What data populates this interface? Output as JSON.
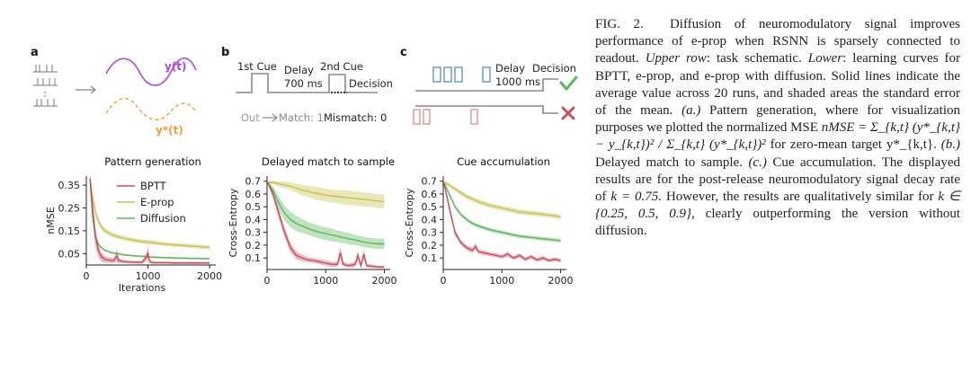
{
  "panel_letters": {
    "a": "a",
    "b": "b",
    "c": "c"
  },
  "schematic_a": {
    "y": "y(t)",
    "ystar": "y*(t)"
  },
  "schematic_b": {
    "cue1": "1st Cue",
    "delay": "Delay",
    "delay_ms": "700 ms",
    "cue2": "2nd Cue",
    "decision": "Decision",
    "out": "Out",
    "match": "Match: 1",
    "mismatch": "Mismatch: 0"
  },
  "schematic_c": {
    "delay": "Delay",
    "delay_ms": "1000 ms",
    "decision": "Decision"
  },
  "colors": {
    "bptt": "#c94f5c",
    "eprop": "#c8c04a",
    "diffusion": "#5cb85c",
    "purple": "#b044d8",
    "orange": "#f0a030",
    "blue": "#6a9ec8",
    "pink": "#e8989c",
    "grey": "#888888"
  },
  "chart_data": [
    {
      "type": "line",
      "title": "Pattern generation",
      "xlabel": "Iterations",
      "ylabel": "nMSE",
      "xlim": [
        0,
        2100
      ],
      "ylim": [
        0,
        0.39
      ],
      "xticks": [
        0,
        1000,
        2000
      ],
      "yticks": [
        0.05,
        0.15,
        0.25,
        0.35
      ],
      "legend": [
        "BPTT",
        "E-prop",
        "Diffusion"
      ],
      "series": [
        {
          "name": "BPTT",
          "x": [
            60,
            100,
            150,
            200,
            250,
            300,
            350,
            400,
            450,
            480,
            500,
            520,
            550,
            600,
            700,
            800,
            900,
            980,
            1000,
            1020,
            1050,
            1100,
            1200,
            1300,
            1400,
            1500,
            1600,
            1700,
            1800,
            1900,
            2000
          ],
          "values": [
            0.38,
            0.25,
            0.12,
            0.06,
            0.035,
            0.025,
            0.022,
            0.02,
            0.02,
            0.035,
            0.04,
            0.02,
            0.018,
            0.015,
            0.013,
            0.012,
            0.012,
            0.035,
            0.055,
            0.02,
            0.012,
            0.01,
            0.01,
            0.01,
            0.009,
            0.009,
            0.009,
            0.009,
            0.009,
            0.009,
            0.009
          ],
          "err": [
            0.02,
            0.05,
            0.04,
            0.03,
            0.02,
            0.015,
            0.012,
            0.012,
            0.012,
            0.02,
            0.03,
            0.012,
            0.01,
            0.008,
            0.006,
            0.006,
            0.006,
            0.02,
            0.03,
            0.01,
            0.006,
            0.005,
            0.005,
            0.005,
            0.005,
            0.005,
            0.005,
            0.005,
            0.005,
            0.005,
            0.005
          ]
        },
        {
          "name": "E-prop",
          "x": [
            60,
            100,
            150,
            200,
            250,
            300,
            400,
            500,
            600,
            700,
            800,
            900,
            1000,
            1100,
            1200,
            1300,
            1400,
            1500,
            1600,
            1700,
            1800,
            1900,
            2000
          ],
          "values": [
            0.38,
            0.3,
            0.23,
            0.19,
            0.165,
            0.15,
            0.135,
            0.125,
            0.118,
            0.112,
            0.107,
            0.103,
            0.1,
            0.097,
            0.094,
            0.091,
            0.089,
            0.087,
            0.085,
            0.083,
            0.081,
            0.079,
            0.077
          ],
          "err": [
            0.015,
            0.015,
            0.014,
            0.013,
            0.012,
            0.012,
            0.011,
            0.011,
            0.01,
            0.01,
            0.01,
            0.01,
            0.01,
            0.01,
            0.009,
            0.009,
            0.009,
            0.009,
            0.009,
            0.009,
            0.009,
            0.009,
            0.009
          ]
        },
        {
          "name": "Diffusion",
          "x": [
            60,
            100,
            150,
            200,
            250,
            300,
            400,
            500,
            600,
            700,
            800,
            900,
            1000,
            1100,
            1200,
            1300,
            1400,
            1500,
            1600,
            1700,
            1800,
            1900,
            2000
          ],
          "values": [
            0.38,
            0.22,
            0.12,
            0.09,
            0.075,
            0.065,
            0.055,
            0.05,
            0.045,
            0.042,
            0.04,
            0.038,
            0.036,
            0.034,
            0.033,
            0.032,
            0.031,
            0.03,
            0.03,
            0.029,
            0.029,
            0.028,
            0.028
          ],
          "err": [
            0.01,
            0.01,
            0.008,
            0.006,
            0.005,
            0.005,
            0.004,
            0.004,
            0.004,
            0.004,
            0.004,
            0.004,
            0.004,
            0.004,
            0.004,
            0.004,
            0.004,
            0.004,
            0.004,
            0.004,
            0.004,
            0.004,
            0.004
          ]
        }
      ]
    },
    {
      "type": "line",
      "title": "Delayed match to sample",
      "xlabel": "",
      "ylabel": "Cross-Entropy",
      "xlim": [
        0,
        2100
      ],
      "ylim": [
        0.01,
        0.74
      ],
      "xticks": [
        0,
        1000,
        2000
      ],
      "yticks": [
        0.1,
        0.2,
        0.3,
        0.4,
        0.5,
        0.6,
        0.7
      ],
      "series": [
        {
          "name": "BPTT",
          "x": [
            10,
            100,
            200,
            300,
            400,
            500,
            600,
            700,
            800,
            900,
            1000,
            1100,
            1200,
            1250,
            1300,
            1350,
            1400,
            1500,
            1550,
            1600,
            1650,
            1700,
            1800,
            1900,
            2000
          ],
          "values": [
            0.69,
            0.6,
            0.45,
            0.3,
            0.18,
            0.12,
            0.1,
            0.085,
            0.08,
            0.07,
            0.06,
            0.05,
            0.05,
            0.14,
            0.05,
            0.045,
            0.04,
            0.05,
            0.12,
            0.04,
            0.13,
            0.04,
            0.035,
            0.03,
            0.03
          ],
          "err": [
            0.01,
            0.03,
            0.04,
            0.04,
            0.035,
            0.03,
            0.025,
            0.02,
            0.02,
            0.02,
            0.02,
            0.02,
            0.02,
            0.05,
            0.02,
            0.015,
            0.015,
            0.02,
            0.04,
            0.015,
            0.04,
            0.015,
            0.012,
            0.01,
            0.01
          ]
        },
        {
          "name": "E-prop",
          "x": [
            10,
            100,
            200,
            300,
            400,
            500,
            600,
            700,
            800,
            900,
            1000,
            1100,
            1200,
            1300,
            1400,
            1500,
            1600,
            1700,
            1800,
            1900,
            2000
          ],
          "values": [
            0.69,
            0.69,
            0.68,
            0.67,
            0.66,
            0.645,
            0.63,
            0.62,
            0.61,
            0.6,
            0.59,
            0.585,
            0.58,
            0.575,
            0.57,
            0.565,
            0.56,
            0.555,
            0.55,
            0.545,
            0.54
          ],
          "err": [
            0.01,
            0.015,
            0.02,
            0.025,
            0.03,
            0.035,
            0.04,
            0.045,
            0.05,
            0.05,
            0.05,
            0.05,
            0.05,
            0.055,
            0.055,
            0.055,
            0.055,
            0.055,
            0.055,
            0.055,
            0.055
          ]
        },
        {
          "name": "Diffusion",
          "x": [
            10,
            100,
            200,
            300,
            400,
            500,
            600,
            700,
            800,
            900,
            1000,
            1100,
            1200,
            1300,
            1400,
            1500,
            1600,
            1700,
            1800,
            1900,
            2000
          ],
          "values": [
            0.69,
            0.63,
            0.53,
            0.45,
            0.4,
            0.37,
            0.35,
            0.33,
            0.315,
            0.3,
            0.29,
            0.28,
            0.27,
            0.26,
            0.25,
            0.24,
            0.23,
            0.22,
            0.215,
            0.21,
            0.21
          ],
          "err": [
            0.01,
            0.03,
            0.05,
            0.06,
            0.06,
            0.06,
            0.055,
            0.05,
            0.05,
            0.05,
            0.05,
            0.05,
            0.045,
            0.045,
            0.045,
            0.04,
            0.04,
            0.04,
            0.04,
            0.04,
            0.04
          ]
        }
      ]
    },
    {
      "type": "line",
      "title": "Cue accumulation",
      "xlabel": "",
      "ylabel": "Cross-Entropy",
      "xlim": [
        0,
        2100
      ],
      "ylim": [
        0.01,
        0.74
      ],
      "xticks": [
        0,
        1000,
        2000
      ],
      "yticks": [
        0.1,
        0.2,
        0.3,
        0.4,
        0.5,
        0.6,
        0.7
      ],
      "series": [
        {
          "name": "BPTT",
          "x": [
            10,
            100,
            200,
            300,
            400,
            500,
            550,
            600,
            700,
            800,
            900,
            1000,
            1100,
            1200,
            1300,
            1400,
            1500,
            1600,
            1700,
            1800,
            1900,
            2000
          ],
          "values": [
            0.69,
            0.5,
            0.3,
            0.22,
            0.18,
            0.16,
            0.19,
            0.15,
            0.14,
            0.13,
            0.12,
            0.11,
            0.13,
            0.1,
            0.12,
            0.09,
            0.11,
            0.085,
            0.1,
            0.08,
            0.09,
            0.08
          ],
          "err": [
            0.01,
            0.03,
            0.025,
            0.02,
            0.02,
            0.02,
            0.025,
            0.018,
            0.018,
            0.015,
            0.015,
            0.015,
            0.02,
            0.015,
            0.018,
            0.015,
            0.018,
            0.015,
            0.018,
            0.015,
            0.015,
            0.015
          ]
        },
        {
          "name": "E-prop",
          "x": [
            10,
            100,
            200,
            300,
            400,
            500,
            600,
            700,
            800,
            900,
            1000,
            1100,
            1200,
            1300,
            1400,
            1500,
            1600,
            1700,
            1800,
            1900,
            2000
          ],
          "values": [
            0.69,
            0.67,
            0.64,
            0.61,
            0.58,
            0.56,
            0.54,
            0.525,
            0.51,
            0.5,
            0.49,
            0.48,
            0.47,
            0.46,
            0.455,
            0.45,
            0.445,
            0.44,
            0.435,
            0.43,
            0.42
          ],
          "err": [
            0.01,
            0.015,
            0.015,
            0.02,
            0.02,
            0.02,
            0.02,
            0.02,
            0.02,
            0.02,
            0.02,
            0.02,
            0.02,
            0.02,
            0.02,
            0.02,
            0.02,
            0.02,
            0.02,
            0.02,
            0.02
          ]
        },
        {
          "name": "Diffusion",
          "x": [
            10,
            100,
            200,
            300,
            400,
            500,
            600,
            700,
            800,
            900,
            1000,
            1100,
            1200,
            1300,
            1400,
            1500,
            1600,
            1700,
            1800,
            1900,
            2000
          ],
          "values": [
            0.69,
            0.6,
            0.5,
            0.44,
            0.4,
            0.37,
            0.35,
            0.335,
            0.32,
            0.31,
            0.3,
            0.29,
            0.28,
            0.27,
            0.265,
            0.26,
            0.255,
            0.25,
            0.245,
            0.24,
            0.235
          ],
          "err": [
            0.01,
            0.015,
            0.015,
            0.015,
            0.015,
            0.015,
            0.015,
            0.015,
            0.015,
            0.015,
            0.015,
            0.015,
            0.015,
            0.015,
            0.015,
            0.015,
            0.015,
            0.015,
            0.015,
            0.015,
            0.015
          ]
        }
      ]
    }
  ],
  "caption": {
    "fig_label": "FIG. 2.",
    "p1": "Diffusion of neuromodulatory signal improves performance of e-prop when RSNN is sparsely connected to readout.",
    "upper_row": "Upper row",
    "p2": ": task schematic.",
    "lower": "Lower",
    "p3": ": learning curves for BPTT, e-prop, and e-prop with diffusion. Solid lines indicate the average value across 20 runs, and shaded areas the standard error of the mean.",
    "a_label": "(a.)",
    "p4": "Pattern generation, where for visualization purposes we plotted the normalized MSE",
    "formula": "nMSE = Σ_{k,t} (y*_{k,t} − y_{k,t})² / Σ_{k,t} (y*_{k,t})²",
    "p5": "for zero-mean target y*_{k,t}.",
    "b_label": "(b.)",
    "p6": "Delayed match to sample.",
    "c_label": "(c.)",
    "p7": "Cue accumulation. The displayed results are for the post-release neuromodulatory signal decay rate of",
    "k_value": "k = 0.75.",
    "p8": "However, the results are qualitatively similar for",
    "k_set": "k ∈ {0.25, 0.5, 0.9},",
    "p9": "clearly outperforming the version without diffusion."
  }
}
